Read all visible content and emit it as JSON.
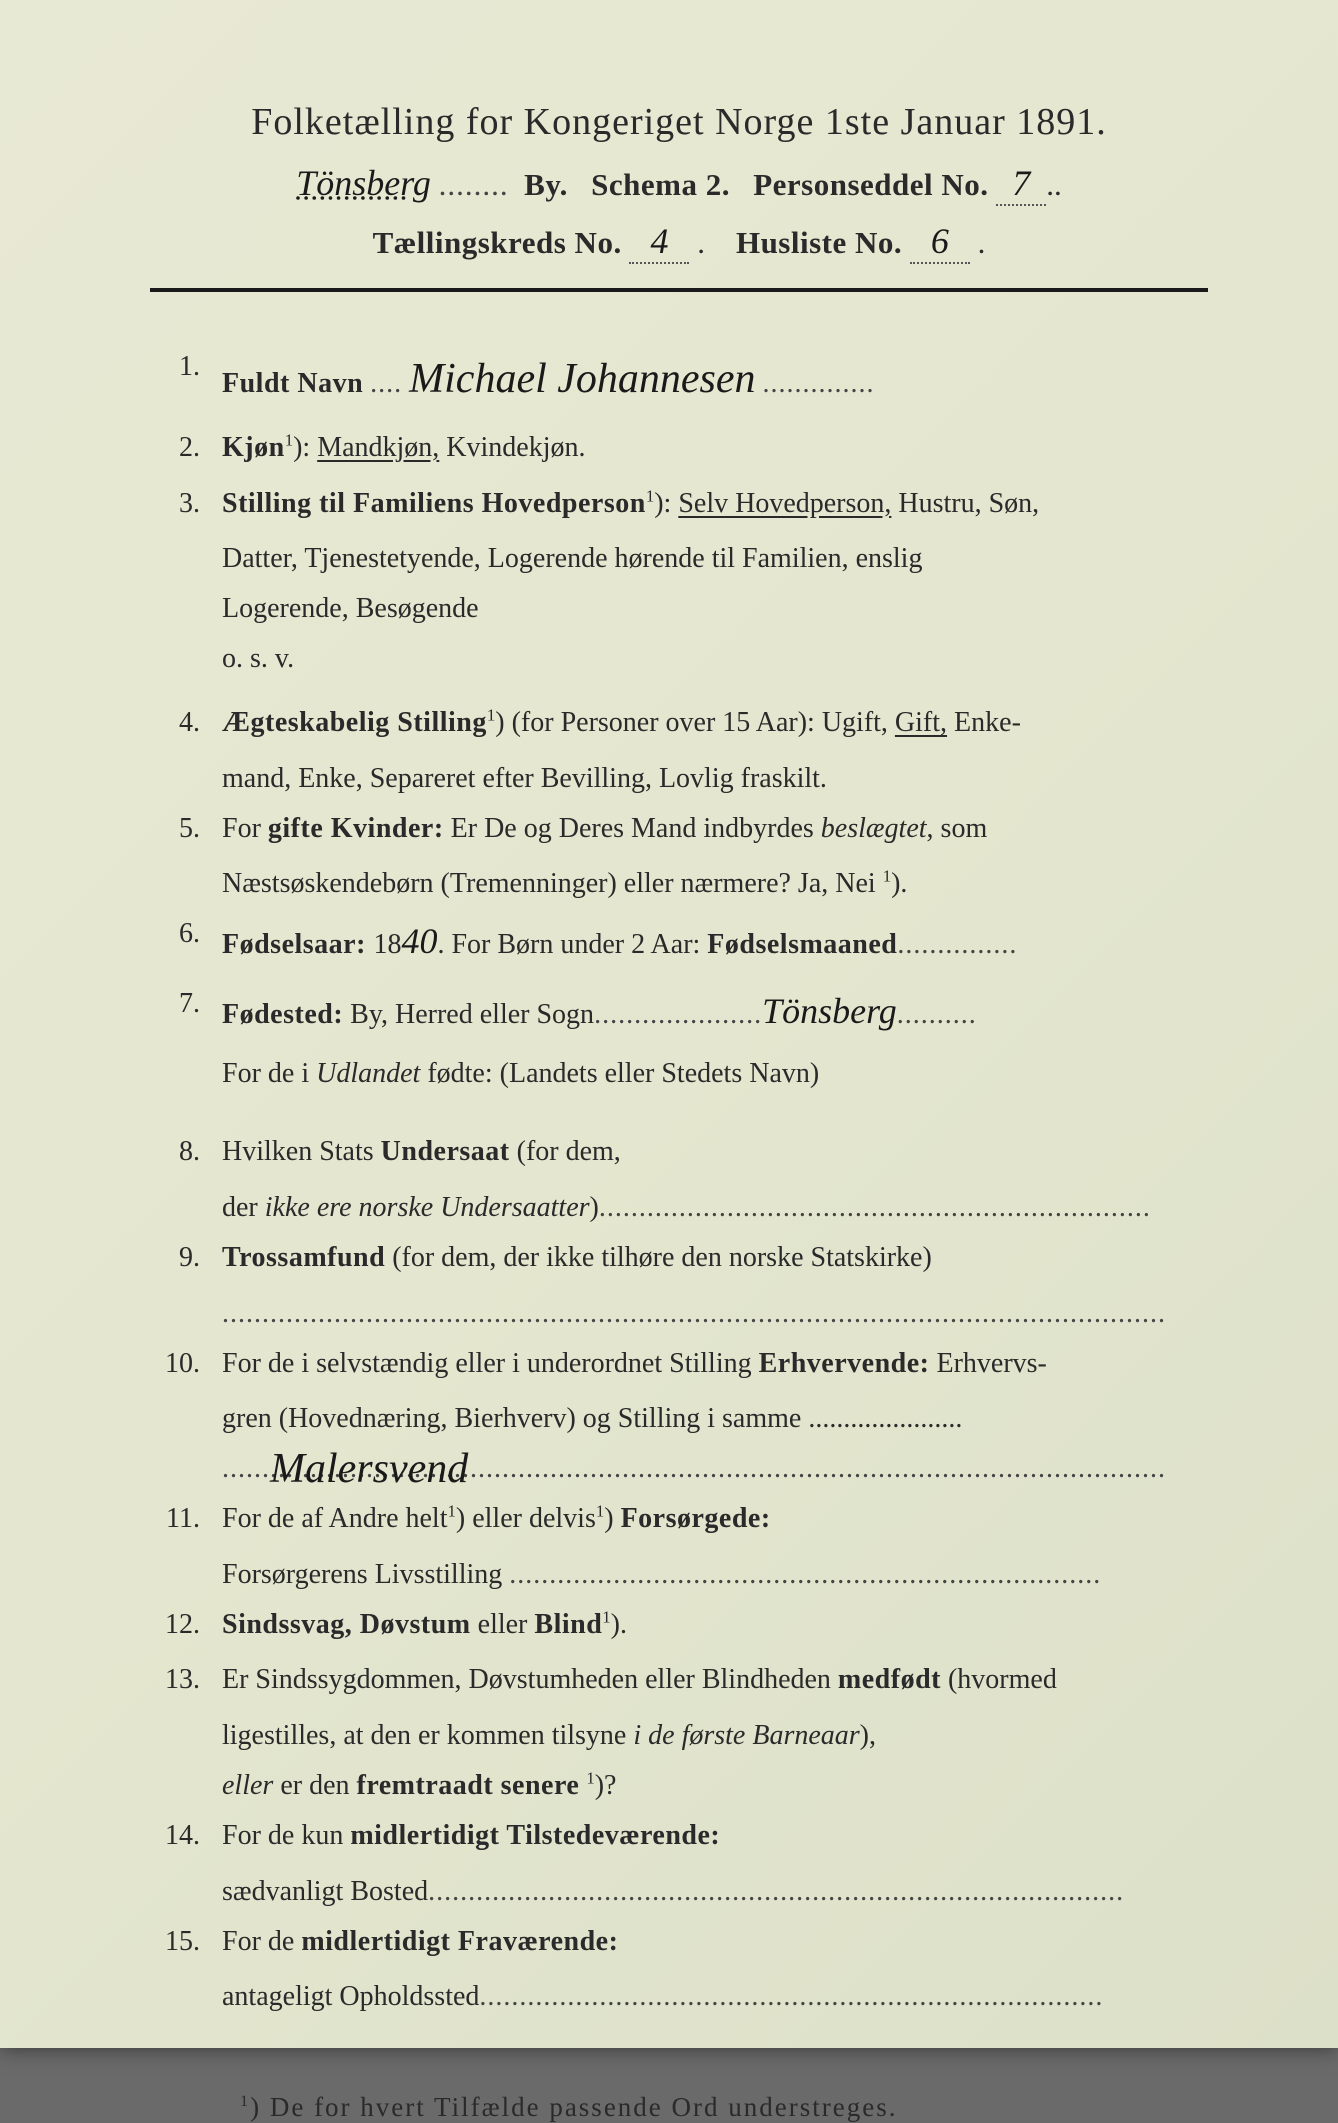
{
  "colors": {
    "paper_bg": "#e4e6cf",
    "text": "#2a2a2a",
    "handwriting": "#1a1a1a",
    "dotted": "#555555",
    "rule": "#1a1a1a"
  },
  "typography": {
    "body_fontsize_pt": 21,
    "header_fontsize_pt": 28,
    "handwriting_family": "cursive"
  },
  "header": {
    "title": "Folketælling for Kongeriget Norge 1ste Januar 1891.",
    "city_hw": "Tönsberg",
    "by_label": "By.",
    "schema_label": "Schema 2.",
    "personseddel_label": "Personseddel No.",
    "personseddel_no_hw": "7",
    "kreds_label": "Tællingskreds No.",
    "kreds_no_hw": "4",
    "husliste_label": "Husliste No.",
    "husliste_no_hw": "6"
  },
  "entries": [
    {
      "n": "1.",
      "label": "Fuldt Navn",
      "hw": "Michael Johannesen"
    },
    {
      "n": "2.",
      "text_a": "Kjøn",
      "sup": "1",
      "text_b": "): ",
      "underlined": "Mandkjøn,",
      "text_c": " Kvindekjøn."
    },
    {
      "n": "3.",
      "label": "Stilling til Familiens Hovedperson",
      "sup": "1",
      "paren": "): ",
      "underlined": "Selv Hovedperson,",
      "rest": " Hustru, Søn,",
      "cont": [
        "Datter, Tjenestetyende, Logerende hørende til Familien, enslig",
        "Logerende, Besøgende",
        "o. s. v."
      ]
    },
    {
      "n": "4.",
      "label": "Ægteskabelig Stilling",
      "sup": "1",
      "paren": ") (for Personer over 15 Aar): Ugift, ",
      "underlined": "Gift,",
      "rest": " Enke-",
      "cont": [
        "mand, Enke, Separeret efter Bevilling, Lovlig fraskilt."
      ]
    },
    {
      "n": "5.",
      "pre": "For ",
      "label": "gifte Kvinder:",
      "rest": " Er De og Deres Mand indbyrdes ",
      "italic": "beslægtet",
      "rest2": ", som",
      "cont_html": "Næstsøskendebørn (Tremenninger) eller nærmere?  Ja, Nei <span class='sup'>1</span>)."
    },
    {
      "n": "6.",
      "label": "Fødselsaar: ",
      "year_prefix": "18",
      "year_hw": "40",
      "mid": ".   For Børn under 2 Aar: ",
      "label2": "Fødselsmaaned",
      "dots": "..............."
    },
    {
      "n": "7.",
      "label": "Fødested:",
      "rest": " By, Herred eller Sogn",
      "dots": ".....................",
      "hw": "Tönsberg",
      "dots2": "..........",
      "cont_html": "For de i <span class='italic'>Udlandet</span> fødte: (Landets eller Stedets Navn)"
    },
    {
      "n": "8.",
      "pre": "Hvilken Stats ",
      "label": "Undersaat",
      "rest": " (for dem,",
      "cont_html": "der <span class='italic'>ikke ere norske Undersaatter</span>)<span class='dotfill'>.....................................................................</span>"
    },
    {
      "n": "9.",
      "label": "Trossamfund",
      "rest": "  (for dem, der ikke tilhøre den norske Statskirke)",
      "cont_html": "<span class='dotfill'>......................................................................................................................</span>"
    },
    {
      "n": "10.",
      "pre": "For de i selvstændig eller i underordnet Stilling ",
      "label": "Erhvervende:",
      "rest": " Erhvervs-",
      "cont": [
        "gren (Hovednæring, Bierhverv) og Stilling i samme ......................"
      ],
      "hw_line": "Malersvend",
      "dots_line": "......................................................................................................................"
    },
    {
      "n": "11.",
      "pre": "For de af Andre helt",
      "sup": "1",
      "mid": ") eller delvis",
      "sup2": "1",
      "mid2": ") ",
      "label": "Forsørgede:",
      "cont_html": "Forsørgerens Livsstilling <span class='dotfill'>..........................................................................</span>"
    },
    {
      "n": "12.",
      "label": "Sindssvag, Døvstum",
      "rest": " eller ",
      "label2": "Blind",
      "sup": "1",
      "rest2": ")."
    },
    {
      "n": "13.",
      "pre": "Er Sindssygdommen, Døvstumheden eller Blindheden ",
      "label": "medfødt",
      "rest": " (hvormed",
      "cont_html_lines": [
        "ligestilles, at den er kommen tilsyne <span class='italic'>i de første Barneaar</span>),",
        "<span class='italic'>eller</span> er den <span class='bold'>fremtraadt senere</span> <span class='sup'>1</span>)?"
      ]
    },
    {
      "n": "14.",
      "pre": "For de kun ",
      "label": "midlertidigt Tilstedeværende:",
      "cont_html": "sædvanligt Bosted<span class='dotfill'>.......................................................................................</span>"
    },
    {
      "n": "15.",
      "pre": "For de ",
      "label": "midlertidigt Fraværende:",
      "cont_html": "antageligt Opholdssted<span class='dotfill'>..............................................................................</span>"
    }
  ],
  "footnote": {
    "sup": "1",
    "text": ") De for hvert Tilfælde passende Ord understreges."
  }
}
